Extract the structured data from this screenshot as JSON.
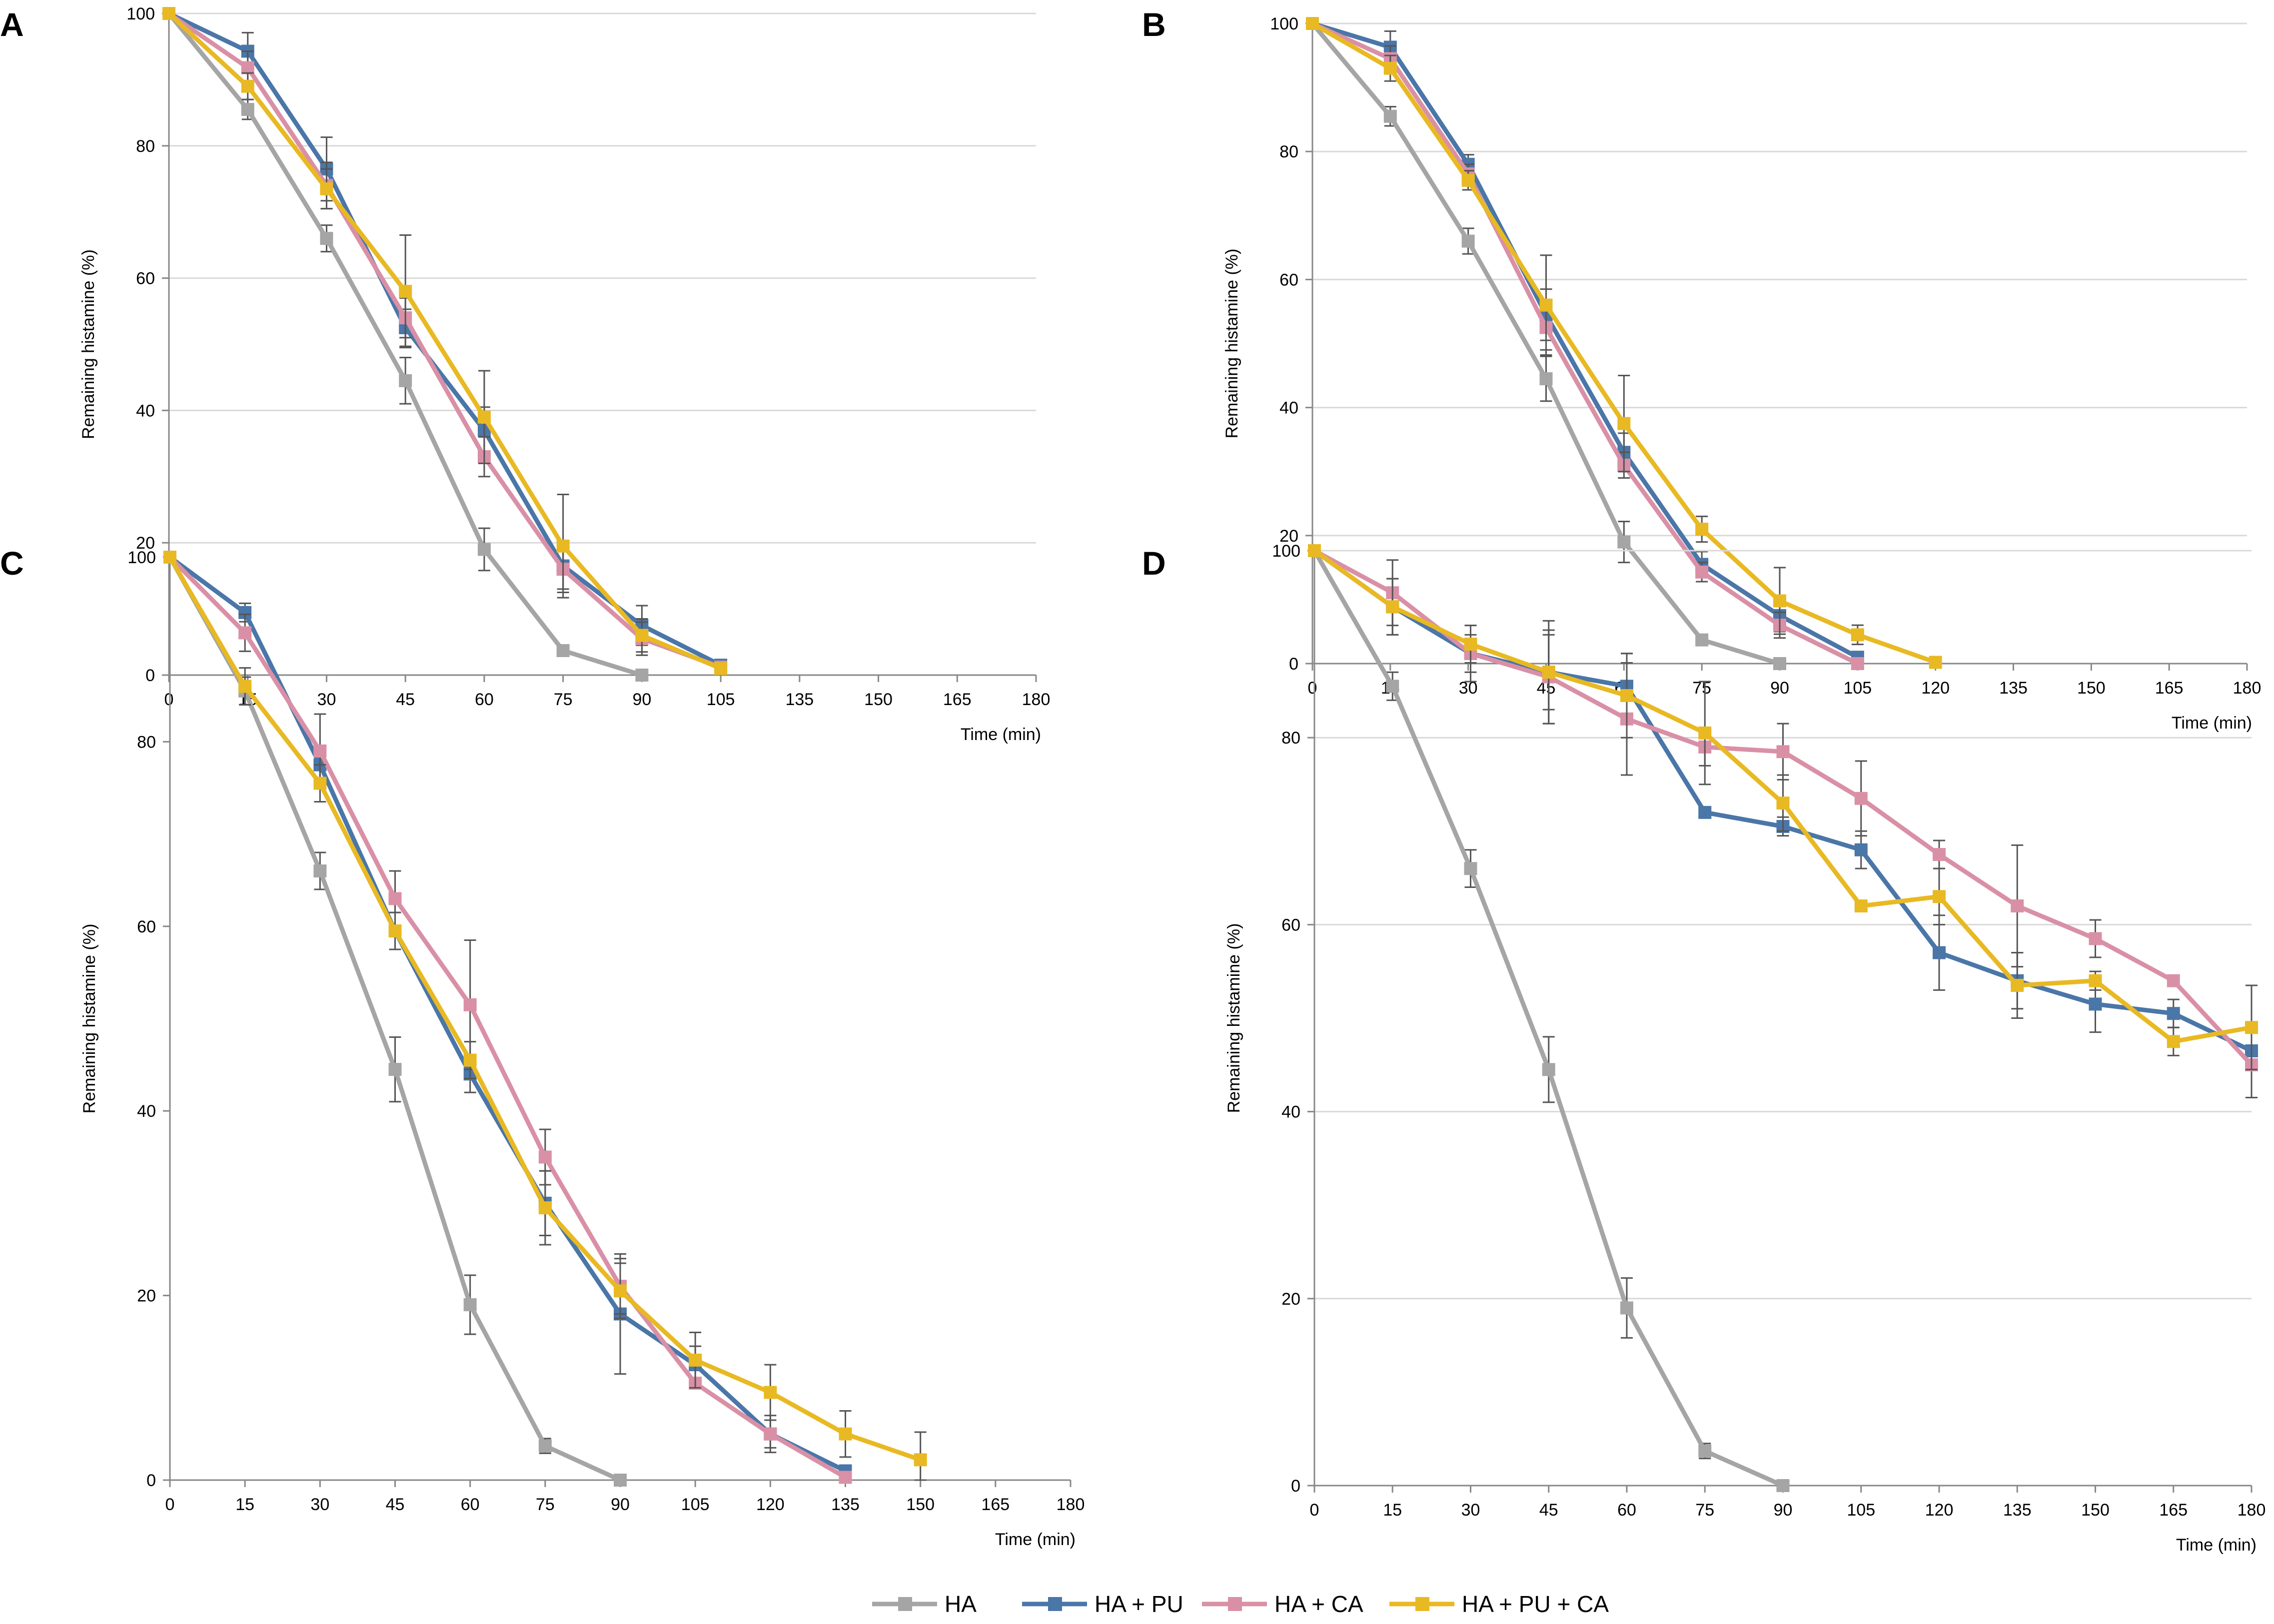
{
  "figure": {
    "legend": [
      {
        "label": "HA",
        "color": "#A5A5A5"
      },
      {
        "label": "HA + PU",
        "color": "#4A76A8"
      },
      {
        "label": "HA + CA",
        "color": "#D990A6"
      },
      {
        "label": "HA + PU + CA",
        "color": "#E8B923"
      }
    ]
  },
  "chart_data": [
    {
      "panel": "A",
      "type": "line",
      "xlabel": "Time (min)",
      "ylabel": "Remaining histamine (%)",
      "ylim": [
        0,
        100
      ],
      "yticks": [
        0,
        20,
        40,
        60,
        80,
        100
      ],
      "xticks": [
        0,
        15,
        30,
        45,
        60,
        75,
        90,
        105,
        135,
        150,
        165,
        180
      ],
      "grid": true,
      "series": [
        {
          "name": "HA",
          "color": "#A5A5A5",
          "x": [
            0,
            15,
            30,
            45,
            60,
            75,
            90
          ],
          "values": [
            100,
            85.5,
            66,
            44.5,
            19,
            3.7,
            0
          ],
          "err": [
            0,
            1.5,
            2,
            3.5,
            3.2,
            0.8,
            0
          ]
        },
        {
          "name": "HA + PU",
          "color": "#4A76A8",
          "x": [
            0,
            15,
            30,
            45,
            60,
            75,
            90,
            105
          ],
          "values": [
            100,
            94.3,
            76.5,
            52.5,
            37,
            16.5,
            7.5,
            1.5
          ],
          "err": [
            0,
            2.8,
            4.8,
            2.8,
            3.5,
            3.5,
            3,
            0
          ]
        },
        {
          "name": "HA + CA",
          "color": "#D990A6",
          "x": [
            0,
            15,
            30,
            45,
            60,
            75,
            90,
            105
          ],
          "values": [
            100,
            91.8,
            74,
            54,
            33,
            16,
            5.5,
            1.2
          ],
          "err": [
            0,
            2.5,
            3.5,
            3,
            3,
            3.5,
            2.5,
            0
          ]
        },
        {
          "name": "HA + PU + CA",
          "color": "#E8B923",
          "x": [
            0,
            15,
            30,
            45,
            60,
            75,
            90,
            105
          ],
          "values": [
            100,
            89,
            73.5,
            58,
            39,
            19.5,
            6,
            1
          ],
          "err": [
            0,
            2,
            3,
            8.5,
            7,
            7.8,
            2.5,
            0
          ]
        }
      ]
    },
    {
      "panel": "B",
      "type": "line",
      "xlabel": "Time (min)",
      "ylabel": "Remaining histamine (%)",
      "ylim": [
        0,
        100
      ],
      "yticks": [
        0,
        20,
        40,
        60,
        80,
        100
      ],
      "xticks": [
        0,
        15,
        30,
        45,
        60,
        75,
        90,
        105,
        120,
        135,
        150,
        165,
        180
      ],
      "grid": true,
      "series": [
        {
          "name": "HA",
          "color": "#A5A5A5",
          "x": [
            0,
            15,
            30,
            45,
            60,
            75,
            90
          ],
          "values": [
            100,
            85.5,
            66,
            44.5,
            19,
            3.7,
            0
          ],
          "err": [
            0,
            1.5,
            2,
            3.5,
            3.2,
            0.8,
            0
          ]
        },
        {
          "name": "HA + PU",
          "color": "#4A76A8",
          "x": [
            0,
            15,
            30,
            45,
            60,
            75,
            90,
            105
          ],
          "values": [
            100,
            96.3,
            78,
            54.5,
            33,
            15.5,
            7.5,
            1
          ],
          "err": [
            0,
            2.5,
            1.5,
            4,
            3,
            2,
            2.5,
            0
          ]
        },
        {
          "name": "HA + CA",
          "color": "#D990A6",
          "x": [
            0,
            15,
            30,
            45,
            60,
            75,
            90,
            105
          ],
          "values": [
            100,
            94.5,
            76.5,
            52.5,
            31,
            14.3,
            6,
            0
          ],
          "err": [
            0,
            2,
            1.5,
            3.5,
            2,
            1.5,
            2,
            0
          ]
        },
        {
          "name": "HA + PU + CA",
          "color": "#E8B923",
          "x": [
            0,
            15,
            30,
            45,
            60,
            75,
            90,
            105,
            120
          ],
          "values": [
            100,
            93,
            75.5,
            56,
            37.5,
            21,
            9.8,
            4.5,
            0.2
          ],
          "err": [
            0,
            2,
            1.5,
            7.8,
            7.5,
            2,
            5.2,
            1.5,
            0
          ]
        }
      ]
    },
    {
      "panel": "C",
      "type": "line",
      "xlabel": "Time (min)",
      "ylabel": "Remaining histamine (%)",
      "ylim": [
        0,
        100
      ],
      "yticks": [
        0,
        20,
        40,
        60,
        80,
        100
      ],
      "xticks": [
        0,
        15,
        30,
        45,
        60,
        75,
        90,
        105,
        120,
        135,
        150,
        165,
        180
      ],
      "grid": false,
      "series": [
        {
          "name": "HA",
          "color": "#A5A5A5",
          "x": [
            0,
            15,
            30,
            45,
            60,
            75,
            90
          ],
          "values": [
            100,
            85.5,
            66,
            44.5,
            19,
            3.7,
            0
          ],
          "err": [
            0,
            1.5,
            2,
            3.5,
            3.2,
            0.8,
            0
          ]
        },
        {
          "name": "HA + PU",
          "color": "#4A76A8",
          "x": [
            0,
            15,
            30,
            45,
            60,
            75,
            90,
            105,
            120,
            135
          ],
          "values": [
            100,
            94,
            77.5,
            59.5,
            44,
            30,
            18,
            12.5,
            5,
            1
          ],
          "err": [
            0,
            1,
            2,
            2,
            2,
            3.5,
            6.5,
            2,
            2,
            0
          ]
        },
        {
          "name": "HA + CA",
          "color": "#D990A6",
          "x": [
            0,
            15,
            30,
            45,
            60,
            75,
            90,
            105,
            120,
            135
          ],
          "values": [
            100,
            91.8,
            79,
            63,
            51.5,
            35,
            21,
            10.5,
            5,
            0.3
          ],
          "err": [
            0,
            2,
            4,
            3,
            7,
            3,
            3,
            0.5,
            1.5,
            0
          ]
        },
        {
          "name": "HA + PU + CA",
          "color": "#E8B923",
          "x": [
            0,
            15,
            30,
            45,
            60,
            75,
            90,
            105,
            120,
            135,
            150
          ],
          "values": [
            100,
            86,
            75.5,
            59.5,
            45.5,
            29.5,
            20.5,
            13,
            9.5,
            5,
            2.2
          ],
          "err": [
            0,
            2,
            2,
            2,
            2,
            4,
            3,
            3,
            3,
            2.5,
            3
          ]
        }
      ]
    },
    {
      "panel": "D",
      "type": "line",
      "xlabel": "Time (min)",
      "ylabel": "Remaining histamine (%)",
      "ylim": [
        0,
        100
      ],
      "yticks": [
        0,
        20,
        40,
        60,
        80,
        100
      ],
      "xticks": [
        0,
        15,
        30,
        45,
        60,
        75,
        90,
        105,
        120,
        135,
        150,
        165,
        180
      ],
      "grid": true,
      "series": [
        {
          "name": "HA",
          "color": "#A5A5A5",
          "x": [
            0,
            15,
            30,
            45,
            60,
            75,
            90
          ],
          "values": [
            100,
            85.5,
            66,
            44.5,
            19,
            3.7,
            0
          ],
          "err": [
            0,
            1.5,
            2,
            3.5,
            3.2,
            0.8,
            0
          ]
        },
        {
          "name": "HA + PU",
          "color": "#4A76A8",
          "x": [
            0,
            15,
            30,
            45,
            60,
            75,
            90,
            105,
            120,
            135,
            150,
            165,
            180
          ],
          "values": [
            100,
            94,
            89,
            87,
            85.5,
            72,
            70.5,
            68,
            57,
            54,
            51.5,
            50.5,
            46.5
          ],
          "err": [
            0,
            3,
            3,
            5.5,
            3.5,
            0,
            1,
            2,
            4,
            3,
            3,
            1.5,
            2
          ]
        },
        {
          "name": "HA + CA",
          "color": "#D990A6",
          "x": [
            0,
            15,
            30,
            45,
            60,
            75,
            90,
            105,
            120,
            135,
            150,
            165,
            180
          ],
          "values": [
            100,
            95.5,
            89,
            86.5,
            82,
            79,
            78.5,
            73.5,
            67.5,
            62,
            58.5,
            54,
            45
          ],
          "err": [
            0,
            3.5,
            2,
            5,
            6,
            2,
            3,
            4,
            1.5,
            6.5,
            2,
            0,
            3.5
          ]
        },
        {
          "name": "HA + PU + CA",
          "color": "#E8B923",
          "x": [
            0,
            15,
            30,
            45,
            60,
            75,
            90,
            105,
            120,
            135,
            150,
            165,
            180
          ],
          "values": [
            100,
            94,
            90,
            87,
            84.5,
            80.5,
            73,
            62,
            63,
            53.5,
            54,
            47.5,
            49
          ],
          "err": [
            0,
            3,
            2,
            4,
            4.5,
            5.5,
            3,
            0,
            3,
            3.5,
            1,
            1.5,
            4.5
          ]
        }
      ]
    }
  ]
}
